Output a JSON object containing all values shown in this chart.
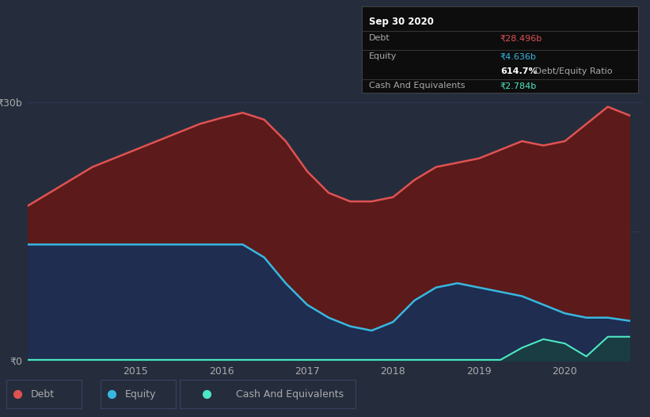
{
  "background_color": "#252d3d",
  "plot_bg_color": "#252d3d",
  "debt_color": "#e05252",
  "equity_color": "#38b8e0",
  "cash_color": "#4de8c2",
  "debt_fill_color": "#5c1a1a",
  "equity_fill_color": "#1e2d50",
  "cash_fill_color": "#1a4040",
  "grid_color": "#3a4060",
  "tooltip_bg": "#0d0d0d",
  "years": [
    2013.75,
    2014.0,
    2014.25,
    2014.5,
    2014.75,
    2015.0,
    2015.25,
    2015.5,
    2015.75,
    2016.0,
    2016.25,
    2016.5,
    2016.75,
    2017.0,
    2017.25,
    2017.5,
    2017.75,
    2018.0,
    2018.25,
    2018.5,
    2018.75,
    2019.0,
    2019.25,
    2019.5,
    2019.75,
    2020.0,
    2020.25,
    2020.5,
    2020.75
  ],
  "debt": [
    18.0,
    19.5,
    21.0,
    22.5,
    23.5,
    24.5,
    25.5,
    26.5,
    27.5,
    28.2,
    28.8,
    28.0,
    25.5,
    22.0,
    19.5,
    18.5,
    18.5,
    19.0,
    21.0,
    22.5,
    23.0,
    23.5,
    24.5,
    25.5,
    25.0,
    25.5,
    27.5,
    29.5,
    28.496
  ],
  "equity": [
    13.5,
    13.5,
    13.5,
    13.5,
    13.5,
    13.5,
    13.5,
    13.5,
    13.5,
    13.5,
    13.5,
    12.0,
    9.0,
    6.5,
    5.0,
    4.0,
    3.5,
    4.5,
    7.0,
    8.5,
    9.0,
    8.5,
    8.0,
    7.5,
    6.5,
    5.5,
    5.0,
    5.0,
    4.636
  ],
  "cash": [
    0.1,
    0.1,
    0.1,
    0.1,
    0.1,
    0.1,
    0.1,
    0.1,
    0.1,
    0.1,
    0.1,
    0.1,
    0.1,
    0.1,
    0.1,
    0.1,
    0.1,
    0.1,
    0.1,
    0.1,
    0.1,
    0.1,
    0.1,
    1.5,
    2.5,
    2.0,
    0.5,
    2.784,
    2.784
  ],
  "ylim": [
    0,
    31
  ],
  "xlim": [
    2013.75,
    2020.9
  ],
  "tooltip_date": "Sep 30 2020",
  "tooltip_debt_label": "Debt",
  "tooltip_debt_val": "₹28.496b",
  "tooltip_equity_label": "Equity",
  "tooltip_equity_val": "₹4.636b",
  "tooltip_ratio_bold": "614.7%",
  "tooltip_ratio_rest": " Debt/Equity Ratio",
  "tooltip_cash_label": "Cash And Equivalents",
  "tooltip_cash_val": "₹2.784b",
  "legend_items": [
    {
      "color": "#e05252",
      "label": "Debt"
    },
    {
      "color": "#38b8e0",
      "label": "Equity"
    },
    {
      "color": "#4de8c2",
      "label": "Cash And Equivalents"
    }
  ]
}
